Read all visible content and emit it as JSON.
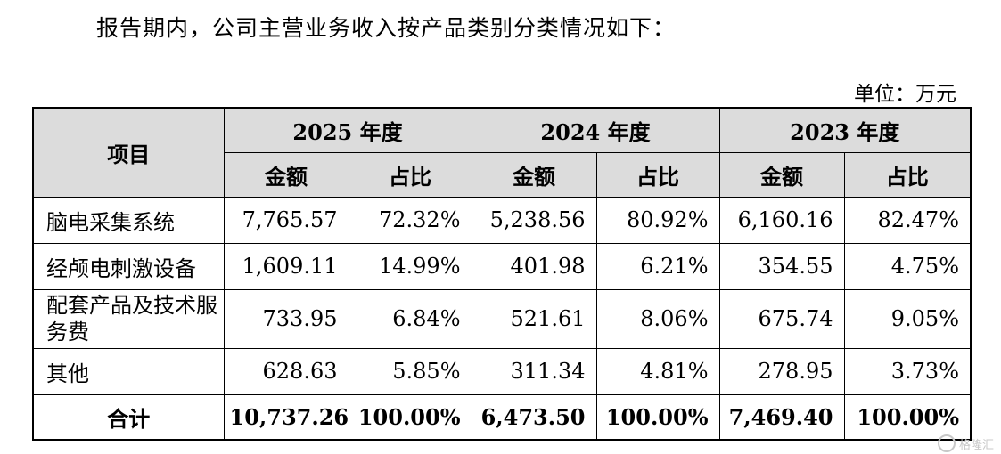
{
  "intro": "报告期内，公司主营业务收入按产品类别分类情况如下：",
  "unit": "单位：万元",
  "table": {
    "item_header": "项目",
    "years": [
      "2025 年度",
      "2024 年度",
      "2023 年度"
    ],
    "sub_headers": [
      "金额",
      "占比"
    ],
    "rows": [
      {
        "name": "脑电采集系统",
        "cells": [
          "7,765.57",
          "72.32%",
          "5,238.56",
          "80.92%",
          "6,160.16",
          "82.47%"
        ]
      },
      {
        "name": "经颅电刺激设备",
        "cells": [
          "1,609.11",
          "14.99%",
          "401.98",
          "6.21%",
          "354.55",
          "4.75%"
        ]
      },
      {
        "name": "配套产品及技术服务费",
        "cells": [
          "733.95",
          "6.84%",
          "521.61",
          "8.06%",
          "675.74",
          "9.05%"
        ]
      },
      {
        "name": "其他",
        "cells": [
          "628.63",
          "5.85%",
          "311.34",
          "4.81%",
          "278.95",
          "3.73%"
        ]
      }
    ],
    "total": {
      "name": "合计",
      "cells": [
        "10,737.26",
        "100.00%",
        "6,473.50",
        "100.00%",
        "7,469.40",
        "100.00%"
      ]
    }
  },
  "watermark": {
    "text": "格隆汇",
    "icon": "gelonghui-logo-icon"
  }
}
